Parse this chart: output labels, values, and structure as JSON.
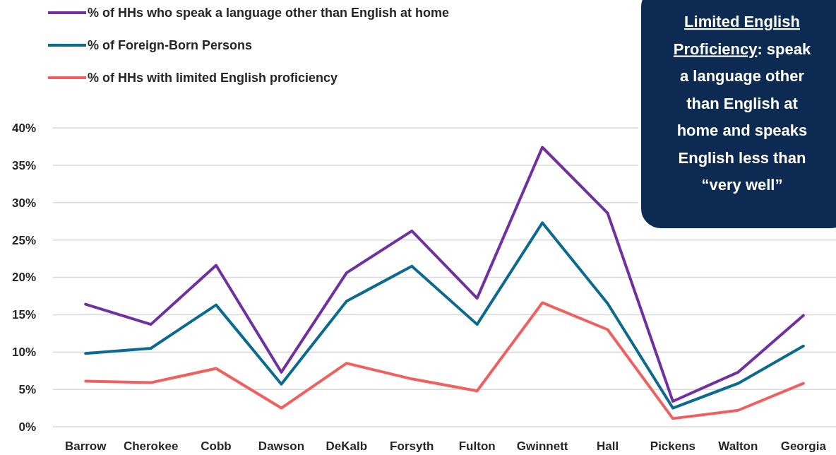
{
  "chart_data": {
    "type": "line",
    "categories": [
      "Barrow",
      "Cherokee",
      "Cobb",
      "Dawson",
      "DeKalb",
      "Forsyth",
      "Fulton",
      "Gwinnett",
      "Hall",
      "Pickens",
      "Walton",
      "Georgia"
    ],
    "series": [
      {
        "name": "% of HHs who speak a language other than English at home",
        "color": "#7030a0",
        "values": [
          16.4,
          13.7,
          21.6,
          7.3,
          20.6,
          26.2,
          17.2,
          37.4,
          28.6,
          3.4,
          7.3,
          14.9
        ]
      },
      {
        "name": "% of Foreign-Born Persons",
        "color": "#0b6a8f",
        "values": [
          9.8,
          10.5,
          16.3,
          5.7,
          16.8,
          21.5,
          13.7,
          27.3,
          16.5,
          2.5,
          5.8,
          10.8
        ]
      },
      {
        "name": "% of HHs with limited English proficiency",
        "color": "#f0605e",
        "values": [
          6.1,
          5.9,
          7.8,
          2.5,
          8.5,
          6.4,
          4.8,
          16.6,
          13.0,
          1.1,
          2.2,
          5.8
        ]
      }
    ],
    "ylim": [
      0,
      40
    ],
    "yticks": [
      {
        "value": 0,
        "label": "0%"
      },
      {
        "value": 5,
        "label": "5%"
      },
      {
        "value": 10,
        "label": "10%"
      },
      {
        "value": 15,
        "label": "15%"
      },
      {
        "value": 20,
        "label": "20%"
      },
      {
        "value": 25,
        "label": "25%"
      },
      {
        "value": 30,
        "label": "30%"
      },
      {
        "value": 35,
        "label": "35%"
      },
      {
        "value": 40,
        "label": "40%"
      }
    ],
    "grid": "y",
    "legend": "top left",
    "marker": "none",
    "line_style": "solid",
    "annotations": [
      "Limited English Proficiency: speak a language other than English at home and speaks English less than “very well”"
    ]
  }
}
